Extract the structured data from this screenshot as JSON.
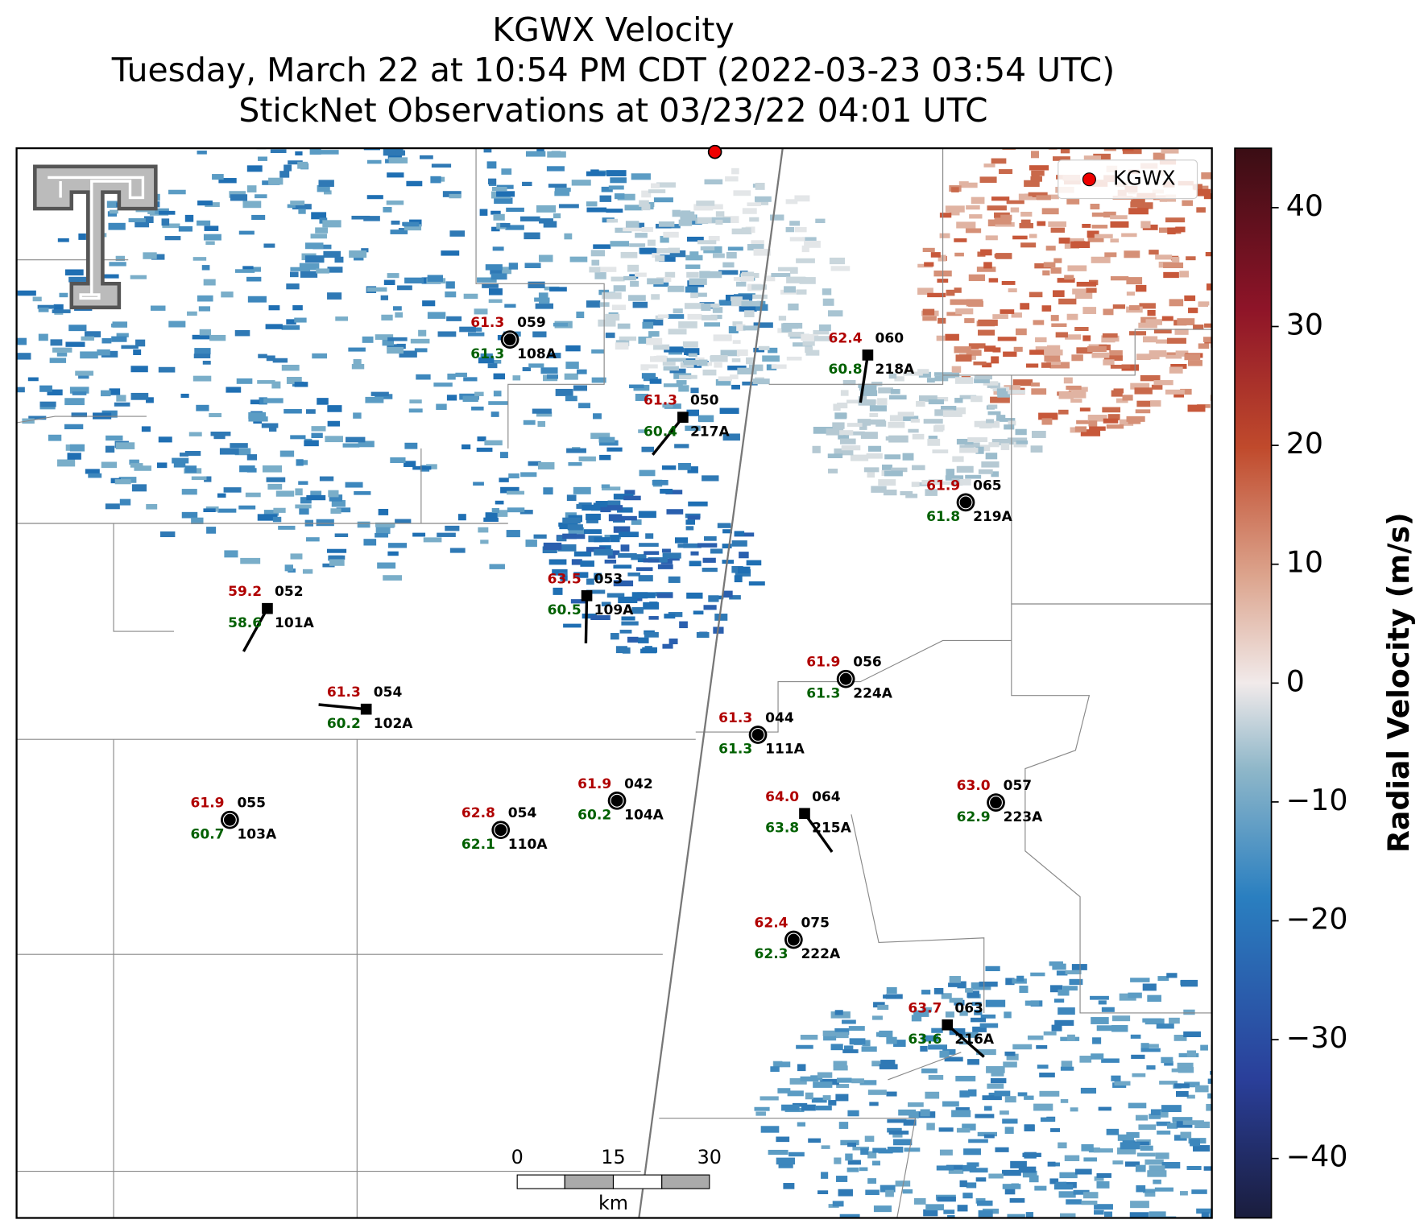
{
  "header": {
    "title": "KGWX Velocity",
    "subtitle": "Tuesday, March 22 at 10:54 PM CDT (2022-03-23 03:54 UTC)",
    "subtitle2": "StickNet Observations at 03/23/22 04:01 UTC"
  },
  "legend": {
    "label": "KGWX"
  },
  "colorbar": {
    "label": "Radial Velocity (m/s)",
    "ylim": [
      -45,
      45
    ],
    "yticks": [
      {
        "value": -40,
        "label": "−40"
      },
      {
        "value": -30,
        "label": "−30"
      },
      {
        "value": -20,
        "label": "−20"
      },
      {
        "value": -10,
        "label": "−10"
      },
      0,
      10,
      20,
      30,
      40
    ]
  },
  "scale_bar": {
    "ticks": [
      "0",
      "15",
      "30"
    ],
    "unit": "km"
  },
  "stations": [
    {
      "temp": "61.3",
      "dew": "61.3",
      "id": "059",
      "name": "108A"
    },
    {
      "temp": "62.4",
      "dew": "60.8",
      "id": "060",
      "name": "218A"
    },
    {
      "temp": "61.3",
      "dew": "60.4",
      "id": "050",
      "name": "217A"
    },
    {
      "temp": "61.9",
      "dew": "61.8",
      "id": "065",
      "name": "219A"
    },
    {
      "temp": "59.2",
      "dew": "58.6",
      "id": "052",
      "name": "101A"
    },
    {
      "temp": "63.5",
      "dew": "60.5",
      "id": "053",
      "name": "109A"
    },
    {
      "temp": "61.3",
      "dew": "60.2",
      "id": "054",
      "name": "102A"
    },
    {
      "temp": "61.9",
      "dew": "61.3",
      "id": "056",
      "name": "224A"
    },
    {
      "temp": "61.3",
      "dew": "61.3",
      "id": "044",
      "name": "111A"
    },
    {
      "temp": "61.9",
      "dew": "60.2",
      "id": "042",
      "name": "104A"
    },
    {
      "temp": "61.9",
      "dew": "60.7",
      "id": "055",
      "name": "103A"
    },
    {
      "temp": "62.8",
      "dew": "62.1",
      "id": "054",
      "name": "110A"
    },
    {
      "temp": "64.0",
      "dew": "63.8",
      "id": "064",
      "name": "215A"
    },
    {
      "temp": "63.0",
      "dew": "62.9",
      "id": "057",
      "name": "223A"
    },
    {
      "temp": "62.4",
      "dew": "62.3",
      "id": "075",
      "name": "222A"
    },
    {
      "temp": "63.7",
      "dew": "63.6",
      "id": "063",
      "name": "216A"
    }
  ]
}
